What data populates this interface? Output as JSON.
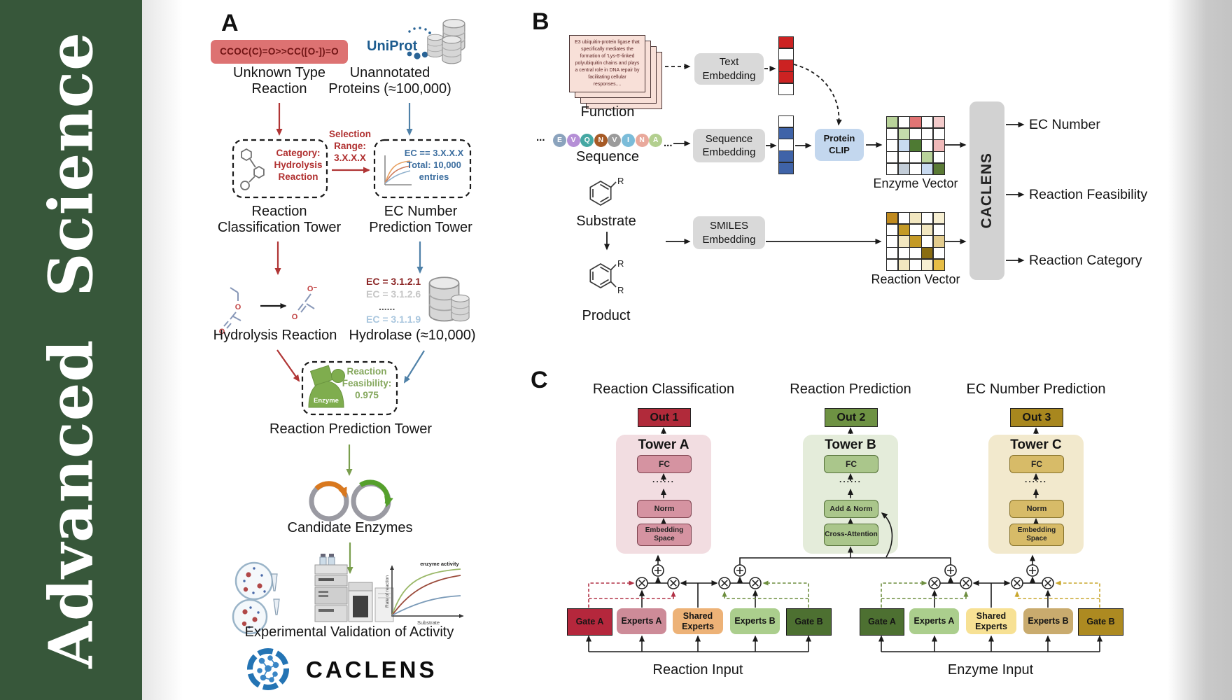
{
  "sidebar": {
    "journal_name": "Advanced Science",
    "bg": "#37573a"
  },
  "panelA": {
    "label": "A",
    "smiles_reaction": "CCOC(C)=O>>CC([O-])=O",
    "unknown_type": "Unknown Type\nReaction",
    "uniprot": "UniProt",
    "unannotated": "Unannotated\nProteins (≈100,000)",
    "category": "Category:\nHydrolysis\nReaction",
    "selection_range": "Selection\nRange:\n3.X.X.X",
    "ec_range": "EC == 3.X.X.X\nTotal: 10,000\nentries",
    "tower_classification": "Reaction\nClassification Tower",
    "tower_ec": "EC Number\nPrediction Tower",
    "hydrolysis_reaction": "Hydrolysis Reaction",
    "ec_list": [
      {
        "text": "EC = 3.1.2.1",
        "color": "#8b2525"
      },
      {
        "text": "EC = 3.1.2.6",
        "color": "#c6c6c6"
      },
      {
        "text": "......",
        "color": "#555555"
      },
      {
        "text": "EC = 3.1.1.9",
        "color": "#a9c6de"
      }
    ],
    "hydrolase": "Hydrolase (≈10,000)",
    "enzyme_label": "Enzyme",
    "feasibility": "Reaction\nFeasibility:\n0.975",
    "tower_prediction": "Reaction Prediction Tower",
    "candidate_enzymes": "Candidate Enzymes",
    "experimental_validation": "Experimental Validation of Activity",
    "plot": {
      "annotation": "enzyme activity",
      "ylabel": "Rate of reaction",
      "xlabel": "Substrate"
    },
    "logo_text": "CACLENS"
  },
  "panelB": {
    "label": "B",
    "function_card_text": "E3 ubiquitin-protein ligase that specifically mediates the formation of 'Lys-6'-linked polyubiquitin chains and plays a central role in DNA repair by facilitating cellular responses....",
    "function_label": "Function",
    "ellipsis": "...",
    "sequence_residues": [
      "E",
      "V",
      "Q",
      "N",
      "V",
      "I",
      "N",
      "A"
    ],
    "residue_colors": [
      "#8ba3bd",
      "#b58fd6",
      "#45a8a3",
      "#a65a26",
      "#9b9b9b",
      "#7bbcd9",
      "#e9a99c",
      "#b3cf8f"
    ],
    "sequence_label": "Sequence",
    "substrate_label": "Substrate",
    "product_label": "Product",
    "r_label": "R",
    "text_embedding": "Text\nEmbedding",
    "sequence_embedding": "Sequence\nEmbedding",
    "smiles_embedding": "SMILES\nEmbedding",
    "protein_clip": "Protein\nCLIP",
    "text_vector_cells": [
      [
        "#cc2222"
      ],
      [
        "#ffffff"
      ],
      [
        "#cc2222"
      ],
      [
        "#cc2222"
      ],
      [
        "#ffffff"
      ]
    ],
    "sequence_vector_cells": [
      [
        "#ffffff"
      ],
      [
        "#3f63a8"
      ],
      [
        "#ffffff"
      ],
      [
        "#3f63a8"
      ],
      [
        "#3f63a8"
      ]
    ],
    "enzyme_vector_cells": [
      [
        "#b9d39a",
        "#ffffff",
        "#e17474",
        "#ffffff",
        "#f3cbcb"
      ],
      [
        "#ffffff",
        "#c4dbab",
        "#ffffff",
        "#ffffff",
        "#ffffff"
      ],
      [
        "#ffffff",
        "#c8daf0",
        "#4e7a33",
        "#ffffff",
        "#f0b9b9"
      ],
      [
        "#ffffff",
        "#ffffff",
        "#ffffff",
        "#b9d39a",
        "#ffffff"
      ],
      [
        "#ffffff",
        "#c3cdd8",
        "#ffffff",
        "#c8daf0",
        "#5a7a35"
      ]
    ],
    "reaction_vector_cells": [
      [
        "#c08a1e",
        "#ffffff",
        "#f2e7c0",
        "#ffffff",
        "#f7efd2"
      ],
      [
        "#ffffff",
        "#c49a26",
        "#ffffff",
        "#f2e7c0",
        "#ffffff"
      ],
      [
        "#ffffff",
        "#f2e7c0",
        "#c49a26",
        "#ffffff",
        "#e3cc8e"
      ],
      [
        "#ffffff",
        "#ffffff",
        "#ffffff",
        "#8a6d12",
        "#ffffff"
      ],
      [
        "#ffffff",
        "#f2e7c0",
        "#ffffff",
        "#f7efd2",
        "#e6bd45"
      ]
    ],
    "enzyme_vector_label": "Enzyme Vector",
    "reaction_vector_label": "Reaction Vector",
    "caclens": "CACLENS",
    "outputs": [
      "EC Number",
      "Reaction Feasibility",
      "Reaction Category"
    ]
  },
  "panelC": {
    "label": "C",
    "columns": [
      {
        "title": "Reaction Classification",
        "out": "Out 1",
        "out_color": "#b12a3a",
        "tower": "Tower A",
        "panel_color": "#f2dde1",
        "box_color": "#d593a1",
        "box_border": "#7e4450",
        "fc": "FC",
        "dots": "......",
        "mid": "Norm",
        "bottom": "Embedding Space"
      },
      {
        "title": "Reaction Prediction",
        "out": "Out 2",
        "out_color": "#6e9243",
        "tower": "Tower B",
        "panel_color": "#e4ecda",
        "box_color": "#aac68b",
        "box_border": "#55713a",
        "fc": "FC",
        "dots": "......",
        "mid": "Add & Norm",
        "bottom": "Cross-Attention"
      },
      {
        "title": "EC Number Prediction",
        "out": "Out 3",
        "out_color": "#a8871e",
        "tower": "Tower C",
        "panel_color": "#f2e9cd",
        "box_color": "#d7bb68",
        "box_border": "#86722c",
        "fc": "FC",
        "dots": "......",
        "mid": "Norm",
        "bottom": "Embedding Space"
      }
    ],
    "moe_reaction": {
      "boxes": [
        {
          "label": "Gate A",
          "color": "#b5273c"
        },
        {
          "label": "Experts A",
          "color": "#cd8b98"
        },
        {
          "label": "Shared Experts",
          "color": "#edb277"
        },
        {
          "label": "Experts B",
          "color": "#abce8d"
        },
        {
          "label": "Gate B",
          "color": "#4d7031"
        }
      ],
      "input": "Reaction Input"
    },
    "moe_enzyme": {
      "boxes": [
        {
          "label": "Gate A",
          "color": "#4d7031"
        },
        {
          "label": "Experts A",
          "color": "#abce8d"
        },
        {
          "label": "Shared Experts",
          "color": "#f7e194"
        },
        {
          "label": "Experts B",
          "color": "#c9ab6e"
        },
        {
          "label": "Gate B",
          "color": "#ad8a21"
        }
      ],
      "input": "Enzyme Input"
    }
  }
}
